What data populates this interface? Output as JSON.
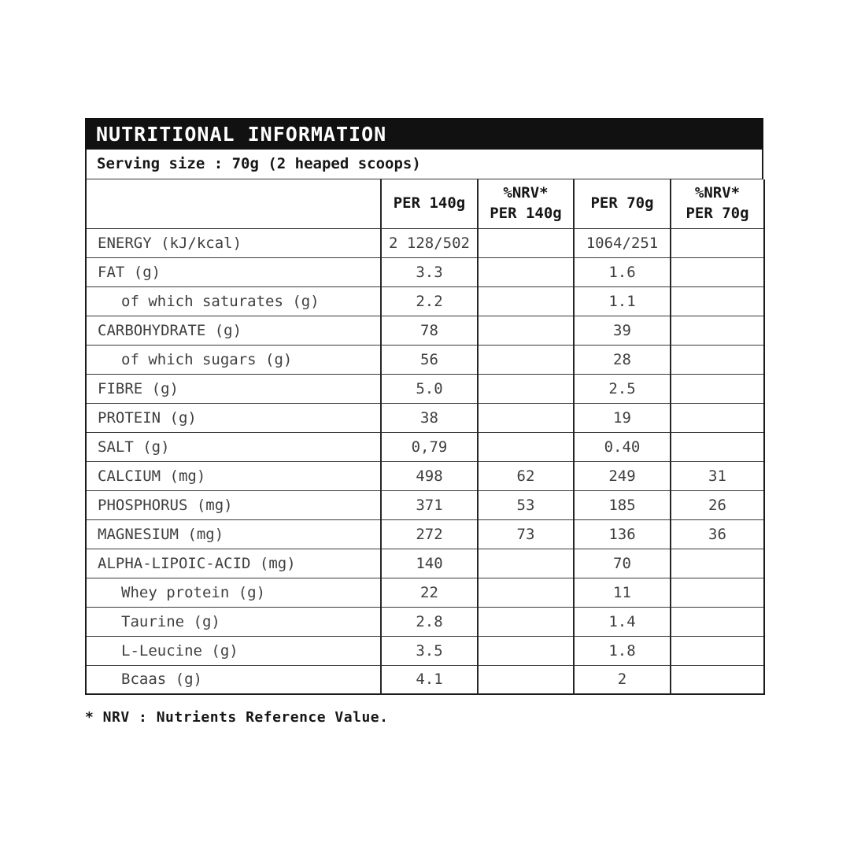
{
  "table": {
    "title": "NUTRITIONAL INFORMATION",
    "serving_line": "Serving size : 70g (2 heaped scoops)",
    "columns": [
      "",
      "PER 140g",
      "%NRV*\nPER 140g",
      "PER 70g",
      "%NRV*\nPER 70g"
    ],
    "rows": [
      {
        "label": "ENERGY (kJ/kcal)",
        "indent": false,
        "per140": "2 128/502",
        "nrv140": "",
        "per70": "1064/251",
        "nrv70": ""
      },
      {
        "label": "FAT (g)",
        "indent": false,
        "per140": "3.3",
        "nrv140": "",
        "per70": "1.6",
        "nrv70": ""
      },
      {
        "label": "of which saturates (g)",
        "indent": true,
        "per140": "2.2",
        "nrv140": "",
        "per70": "1.1",
        "nrv70": ""
      },
      {
        "label": "CARBOHYDRATE (g)",
        "indent": false,
        "per140": "78",
        "nrv140": "",
        "per70": "39",
        "nrv70": ""
      },
      {
        "label": "of which sugars (g)",
        "indent": true,
        "per140": "56",
        "nrv140": "",
        "per70": "28",
        "nrv70": ""
      },
      {
        "label": "FIBRE (g)",
        "indent": false,
        "per140": "5.0",
        "nrv140": "",
        "per70": "2.5",
        "nrv70": ""
      },
      {
        "label": "PROTEIN (g)",
        "indent": false,
        "per140": "38",
        "nrv140": "",
        "per70": "19",
        "nrv70": ""
      },
      {
        "label": "SALT (g)",
        "indent": false,
        "per140": "0,79",
        "nrv140": "",
        "per70": "0.40",
        "nrv70": ""
      },
      {
        "label": "CALCIUM (mg)",
        "indent": false,
        "per140": "498",
        "nrv140": "62",
        "per70": "249",
        "nrv70": "31"
      },
      {
        "label": "PHOSPHORUS (mg)",
        "indent": false,
        "per140": "371",
        "nrv140": "53",
        "per70": "185",
        "nrv70": "26"
      },
      {
        "label": "MAGNESIUM (mg)",
        "indent": false,
        "per140": "272",
        "nrv140": "73",
        "per70": "136",
        "nrv70": "36"
      },
      {
        "label": "ALPHA-LIPOIC-ACID (mg)",
        "indent": false,
        "per140": "140",
        "nrv140": "",
        "per70": "70",
        "nrv70": ""
      },
      {
        "label": "Whey protein (g)",
        "indent": true,
        "per140": "22",
        "nrv140": "",
        "per70": "11",
        "nrv70": ""
      },
      {
        "label": "Taurine (g)",
        "indent": true,
        "per140": "2.8",
        "nrv140": "",
        "per70": "1.4",
        "nrv70": ""
      },
      {
        "label": "L-Leucine (g)",
        "indent": true,
        "per140": "3.5",
        "nrv140": "",
        "per70": "1.8",
        "nrv70": ""
      },
      {
        "label": "Bcaas (g)",
        "indent": true,
        "per140": "4.1",
        "nrv140": "",
        "per70": "2",
        "nrv70": ""
      }
    ]
  },
  "footnote": "* NRV : Nutrients Reference Value.",
  "colors": {
    "title_bar_bg": "#111111",
    "title_text": "#ffffff",
    "body_text": "#3f3f3f",
    "strong_text": "#161616",
    "border": "#1b1b1b"
  }
}
